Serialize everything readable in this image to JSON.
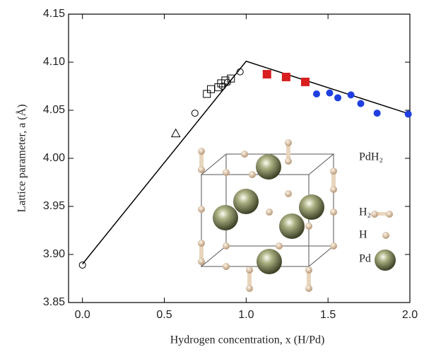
{
  "chart_data": {
    "type": "scatter",
    "x_label": "Hydrogen concentration, x (H/Pd)",
    "y_label": "Lattice parameter, a (Å)",
    "xlim": [
      -0.085,
      2.0
    ],
    "ylim": [
      3.85,
      4.15
    ],
    "xticks": [
      {
        "value": 0,
        "label": "0.0"
      },
      0.5,
      {
        "value": 1,
        "label": "1.0"
      },
      1.5,
      {
        "value": 2,
        "label": "2.0"
      }
    ],
    "yticks": [
      3.85,
      {
        "value": 3.9,
        "label": "3.90"
      },
      3.95,
      {
        "value": 4,
        "label": "4.00"
      },
      4.05,
      {
        "value": 4.1,
        "label": "4.10"
      },
      4.15
    ],
    "series": [
      {
        "marker": "line",
        "color": "#000000",
        "x": [
          0,
          1.0,
          2.0
        ],
        "values": [
          3.89,
          4.101,
          4.046
        ]
      },
      {
        "marker": "open-circle",
        "color": "#000000",
        "x": [
          0,
          0.687,
          0.855,
          0.886,
          0.963
        ],
        "values": [
          3.889,
          4.047,
          4.075,
          4.079,
          4.09
        ]
      },
      {
        "marker": "open-square",
        "color": "#000000",
        "x": [
          0.76,
          0.785,
          0.83,
          0.847,
          0.873,
          0.907
        ],
        "values": [
          4.067,
          4.072,
          4.074,
          4.078,
          4.081,
          4.083
        ]
      },
      {
        "marker": "open-triangle",
        "color": "#000000",
        "x": [
          0.57
        ],
        "values": [
          4.026
        ]
      },
      {
        "marker": "square",
        "color": "#d81e1e",
        "x": [
          1.127,
          1.244,
          1.361
        ],
        "values": [
          4.0875,
          4.0846,
          4.0795
        ]
      },
      {
        "marker": "circle",
        "color": "#1f3fe0",
        "x": [
          1.43,
          1.51,
          1.56,
          1.64,
          1.7,
          1.8,
          1.99
        ],
        "values": [
          4.067,
          4.068,
          4.063,
          4.066,
          4.057,
          4.047,
          4.046
        ]
      }
    ],
    "inset": {
      "title": "PdH₂",
      "legend": [
        "H₂",
        "H",
        "Pd"
      ]
    }
  }
}
